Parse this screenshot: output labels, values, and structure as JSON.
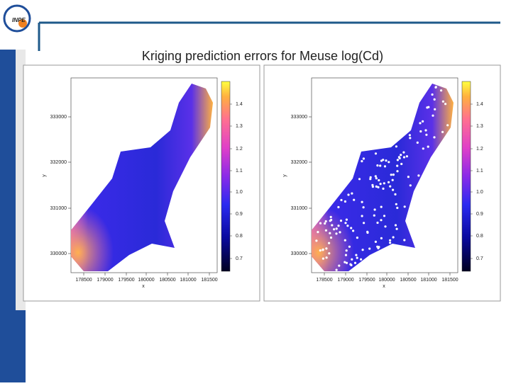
{
  "header": {
    "logo": "INPE"
  },
  "title": "Kriging prediction errors for Meuse log(Cd)",
  "panels": [
    {
      "xlabel": "x",
      "ylabel": "y",
      "xticks": [
        "178500",
        "179000",
        "179500",
        "180000",
        "180500",
        "181000",
        "181500"
      ],
      "yticks": [
        "330000",
        "331000",
        "332000",
        "333000"
      ],
      "colorbar_ticks": [
        "0.7",
        "0.8",
        "0.9",
        "1.0",
        "1.1",
        "1.2",
        "1.3",
        "1.4"
      ]
    },
    {
      "xlabel": "x",
      "ylabel": "y",
      "xticks": [
        "178500",
        "179000",
        "179500",
        "180000",
        "180500",
        "181000",
        "181500"
      ],
      "yticks": [
        "330000",
        "331000",
        "332000",
        "333000"
      ],
      "colorbar_ticks": [
        "0.7",
        "0.8",
        "0.9",
        "1.0",
        "1.1",
        "1.2",
        "1.3",
        "1.4"
      ]
    }
  ]
}
